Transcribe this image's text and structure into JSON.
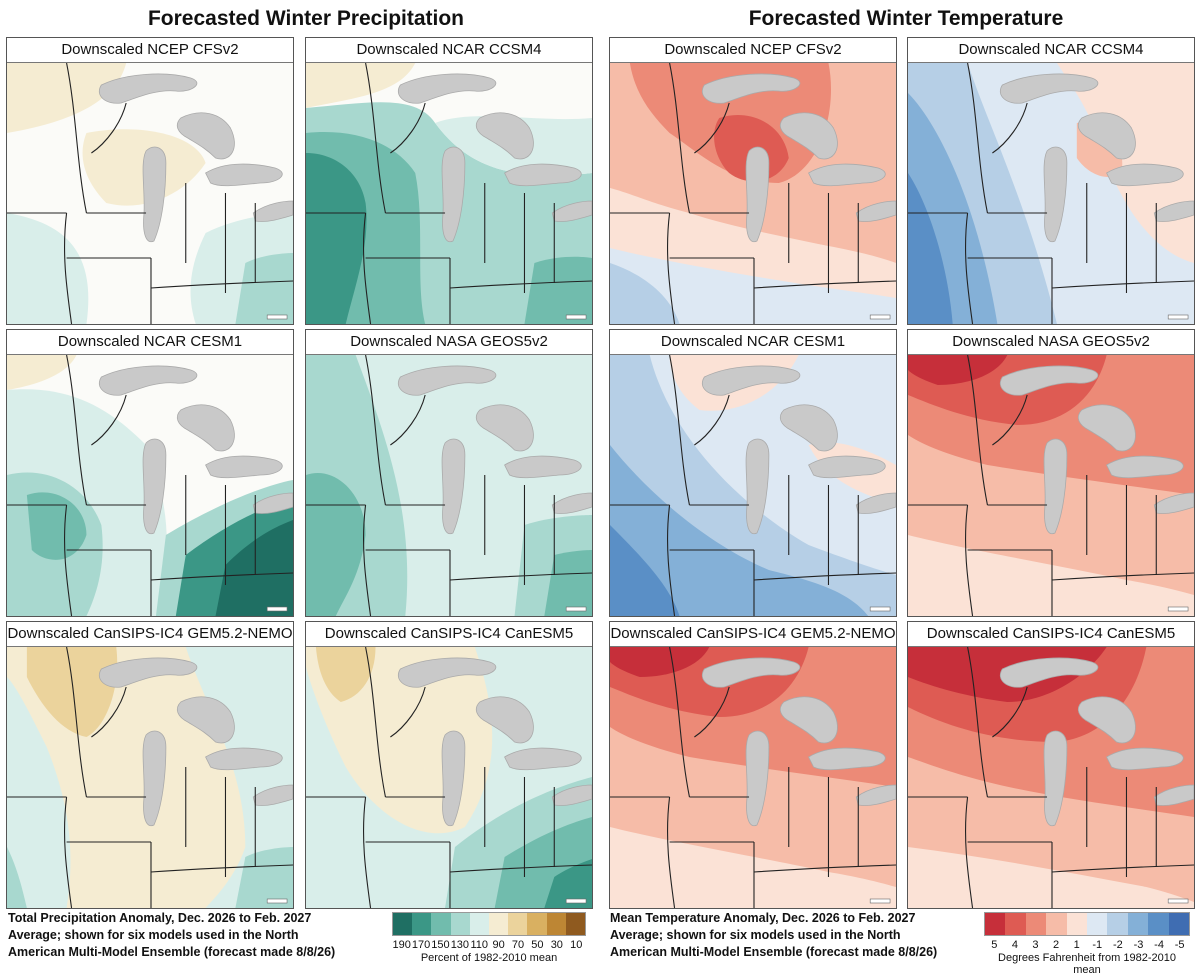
{
  "headers": {
    "precip": "Forecasted Winter Precipitation",
    "temp": "Forecasted Winter Temperature"
  },
  "panels": [
    {
      "title": "Downscaled NCEP CFSv2",
      "var": "precip",
      "pattern": "dry-north"
    },
    {
      "title": "Downscaled NCAR CCSM4",
      "var": "precip",
      "pattern": "wet-west"
    },
    {
      "title": "Downscaled NCEP CFSv2",
      "var": "temp",
      "pattern": "warm-north"
    },
    {
      "title": "Downscaled NCAR CCSM4",
      "var": "temp",
      "pattern": "cold-west"
    },
    {
      "title": "Downscaled NCAR CESM1",
      "var": "precip",
      "pattern": "wet-southeast"
    },
    {
      "title": "Downscaled NASA GEOS5v2",
      "var": "precip",
      "pattern": "wet-all"
    },
    {
      "title": "Downscaled NCAR CESM1",
      "var": "temp",
      "pattern": "cold-south"
    },
    {
      "title": "Downscaled NASA GEOS5v2",
      "var": "temp",
      "pattern": "warm-strong"
    },
    {
      "title": "Downscaled CanSIPS-IC4 GEM5.2-NEMO",
      "var": "precip",
      "pattern": "dry-center"
    },
    {
      "title": "Downscaled CanSIPS-IC4 CanESM5",
      "var": "precip",
      "pattern": "dry-center-wet-se"
    },
    {
      "title": "Downscaled CanSIPS-IC4 GEM5.2-NEMO",
      "var": "temp",
      "pattern": "warm-strong"
    },
    {
      "title": "Downscaled CanSIPS-IC4 CanESM5",
      "var": "temp",
      "pattern": "warm-strongest"
    }
  ],
  "footer": {
    "precip_lines": [
      "Total Precipitation Anomaly, Dec. 2026 to Feb. 2027",
      "Average; shown for six models used in the North",
      "American Multi-Model Ensemble (forecast made 8/8/26)"
    ],
    "temp_lines": [
      "Mean Temperature Anomaly, Dec. 2026 to Feb. 2027",
      "Average; shown for six models used in the North",
      "American Multi-Model Ensemble (forecast made 8/8/26)"
    ]
  },
  "precip_legend": {
    "colors": [
      "#1f6f63",
      "#3b9786",
      "#71bcad",
      "#a8d8cf",
      "#d9eeea",
      "#f5ecd2",
      "#ebd39c",
      "#d9b061",
      "#bd8634",
      "#8f5a1f"
    ],
    "labels": [
      "190",
      "170",
      "150",
      "130",
      "110",
      "90",
      "70",
      "50",
      "30",
      "10"
    ],
    "unit": "Percent of 1982-2010 mean"
  },
  "temp_legend": {
    "colors": [
      "#c62f3a",
      "#de5b53",
      "#ec8a77",
      "#f6bca8",
      "#fbe2d6",
      "#dde8f3",
      "#b6cfe6",
      "#84b0d7",
      "#5a8fc6",
      "#3f6db2"
    ],
    "labels": [
      "5",
      "4",
      "3",
      "2",
      "1",
      "-1",
      "-2",
      "-3",
      "-4",
      "-5"
    ],
    "unit": "Degrees Fahrenheit from 1982-2010 mean"
  }
}
